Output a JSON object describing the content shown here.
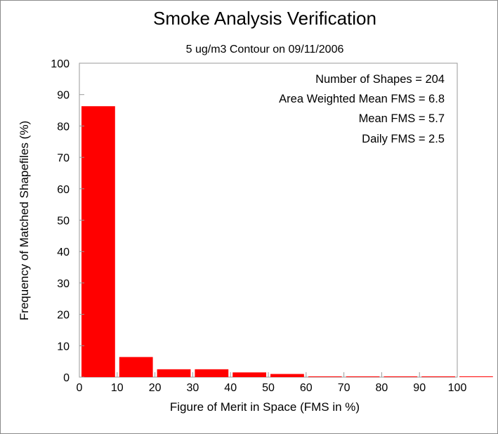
{
  "chart_data": {
    "type": "bar",
    "title": "Smoke Analysis Verification",
    "subtitle": "5 ug/m3 Contour on 09/11/2006",
    "xlabel": "Figure of Merit in Space (FMS in %)",
    "ylabel": "Frequency of Matched Shapefiles (%)",
    "xlim": [
      0,
      100
    ],
    "ylim": [
      0,
      100
    ],
    "xticks": [
      "0",
      "10",
      "20",
      "30",
      "40",
      "50",
      "60",
      "70",
      "80",
      "90",
      "100"
    ],
    "yticks": [
      "0",
      "10",
      "20",
      "30",
      "40",
      "50",
      "60",
      "70",
      "80",
      "90",
      "100"
    ],
    "bin_width": 10,
    "bins": [
      {
        "x0": 0,
        "x1": 10,
        "value": 86.3
      },
      {
        "x0": 10,
        "x1": 20,
        "value": 6.4
      },
      {
        "x0": 20,
        "x1": 30,
        "value": 2.5
      },
      {
        "x0": 30,
        "x1": 40,
        "value": 2.5
      },
      {
        "x0": 40,
        "x1": 50,
        "value": 1.5
      },
      {
        "x0": 50,
        "x1": 60,
        "value": 1.0
      },
      {
        "x0": 60,
        "x1": 70,
        "value": 0.1
      },
      {
        "x0": 70,
        "x1": 80,
        "value": 0.1
      },
      {
        "x0": 80,
        "x1": 90,
        "value": 0.1
      },
      {
        "x0": 90,
        "x1": 100,
        "value": 0.1
      },
      {
        "x0": 100,
        "x1": 110,
        "value": 0.1
      }
    ],
    "bar_color": "#ff0000",
    "grid": false,
    "annotations": [
      "Number of Shapes = 204",
      "Area Weighted Mean FMS = 6.8",
      "Mean FMS = 5.7",
      "Daily FMS = 2.5"
    ]
  }
}
